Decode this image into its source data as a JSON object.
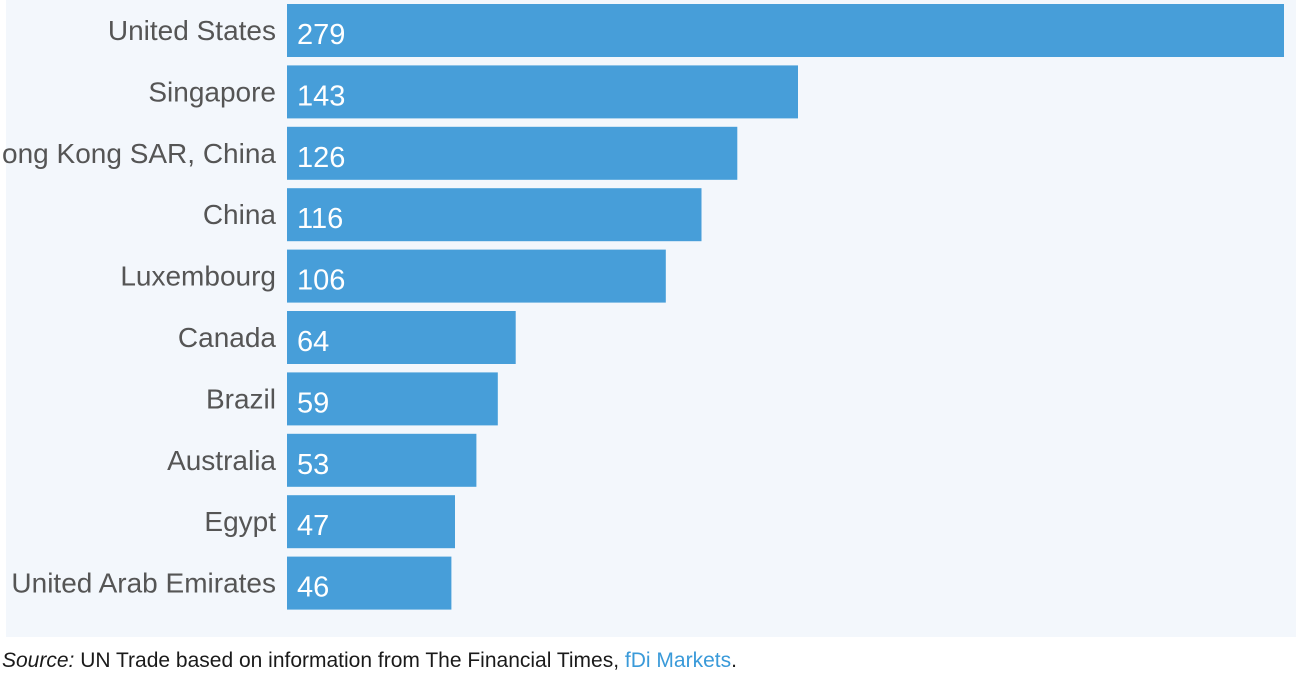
{
  "chart_data": {
    "type": "bar",
    "orientation": "horizontal",
    "categories": [
      "United States",
      "Singapore",
      "Hong Kong SAR, China",
      "China",
      "Luxembourg",
      "Canada",
      "Brazil",
      "Australia",
      "Egypt",
      "United Arab Emirates"
    ],
    "values": [
      279,
      143,
      126,
      116,
      106,
      64,
      59,
      53,
      47,
      46
    ],
    "title": "",
    "xlabel": "",
    "ylabel": "",
    "xlim": [
      0,
      279
    ],
    "grid": false,
    "legend": "none",
    "bar_color": "#479ed9",
    "data_labels": true
  },
  "source": {
    "prefix": "Source:",
    "text": " UN Trade based on information from The Financial Times, ",
    "link": "fDi Markets",
    "suffix": "."
  },
  "colors": {
    "panel_background": "#f3f7fc",
    "label_text": "#555555",
    "bar": "#479ed9",
    "link": "#3a9ad9"
  }
}
